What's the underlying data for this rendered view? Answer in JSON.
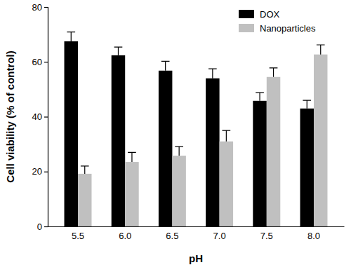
{
  "chart_data": {
    "type": "bar",
    "x_label": "pH",
    "y_label": "Cell viability (% of control)",
    "categories": [
      "5.5",
      "6.0",
      "6.5",
      "7.0",
      "7.5",
      "8.0"
    ],
    "series": [
      {
        "name": "DOX",
        "color": "#000000",
        "values": [
          67.5,
          62.4,
          56.8,
          54,
          45.8,
          43
        ],
        "errors": [
          3.4,
          3,
          3.4,
          3.5,
          3,
          3
        ]
      },
      {
        "name": "Nanoparticles",
        "color": "#c0c0c0",
        "values": [
          19.2,
          23.5,
          25.8,
          31,
          54.5,
          62.7
        ],
        "errors": [
          2.8,
          3.5,
          3.3,
          4,
          3.3,
          3.5
        ]
      }
    ],
    "ylim": [
      0,
      80
    ],
    "yticks": [
      0,
      20,
      40,
      60,
      80
    ],
    "grid": false,
    "legend": "upper right"
  }
}
